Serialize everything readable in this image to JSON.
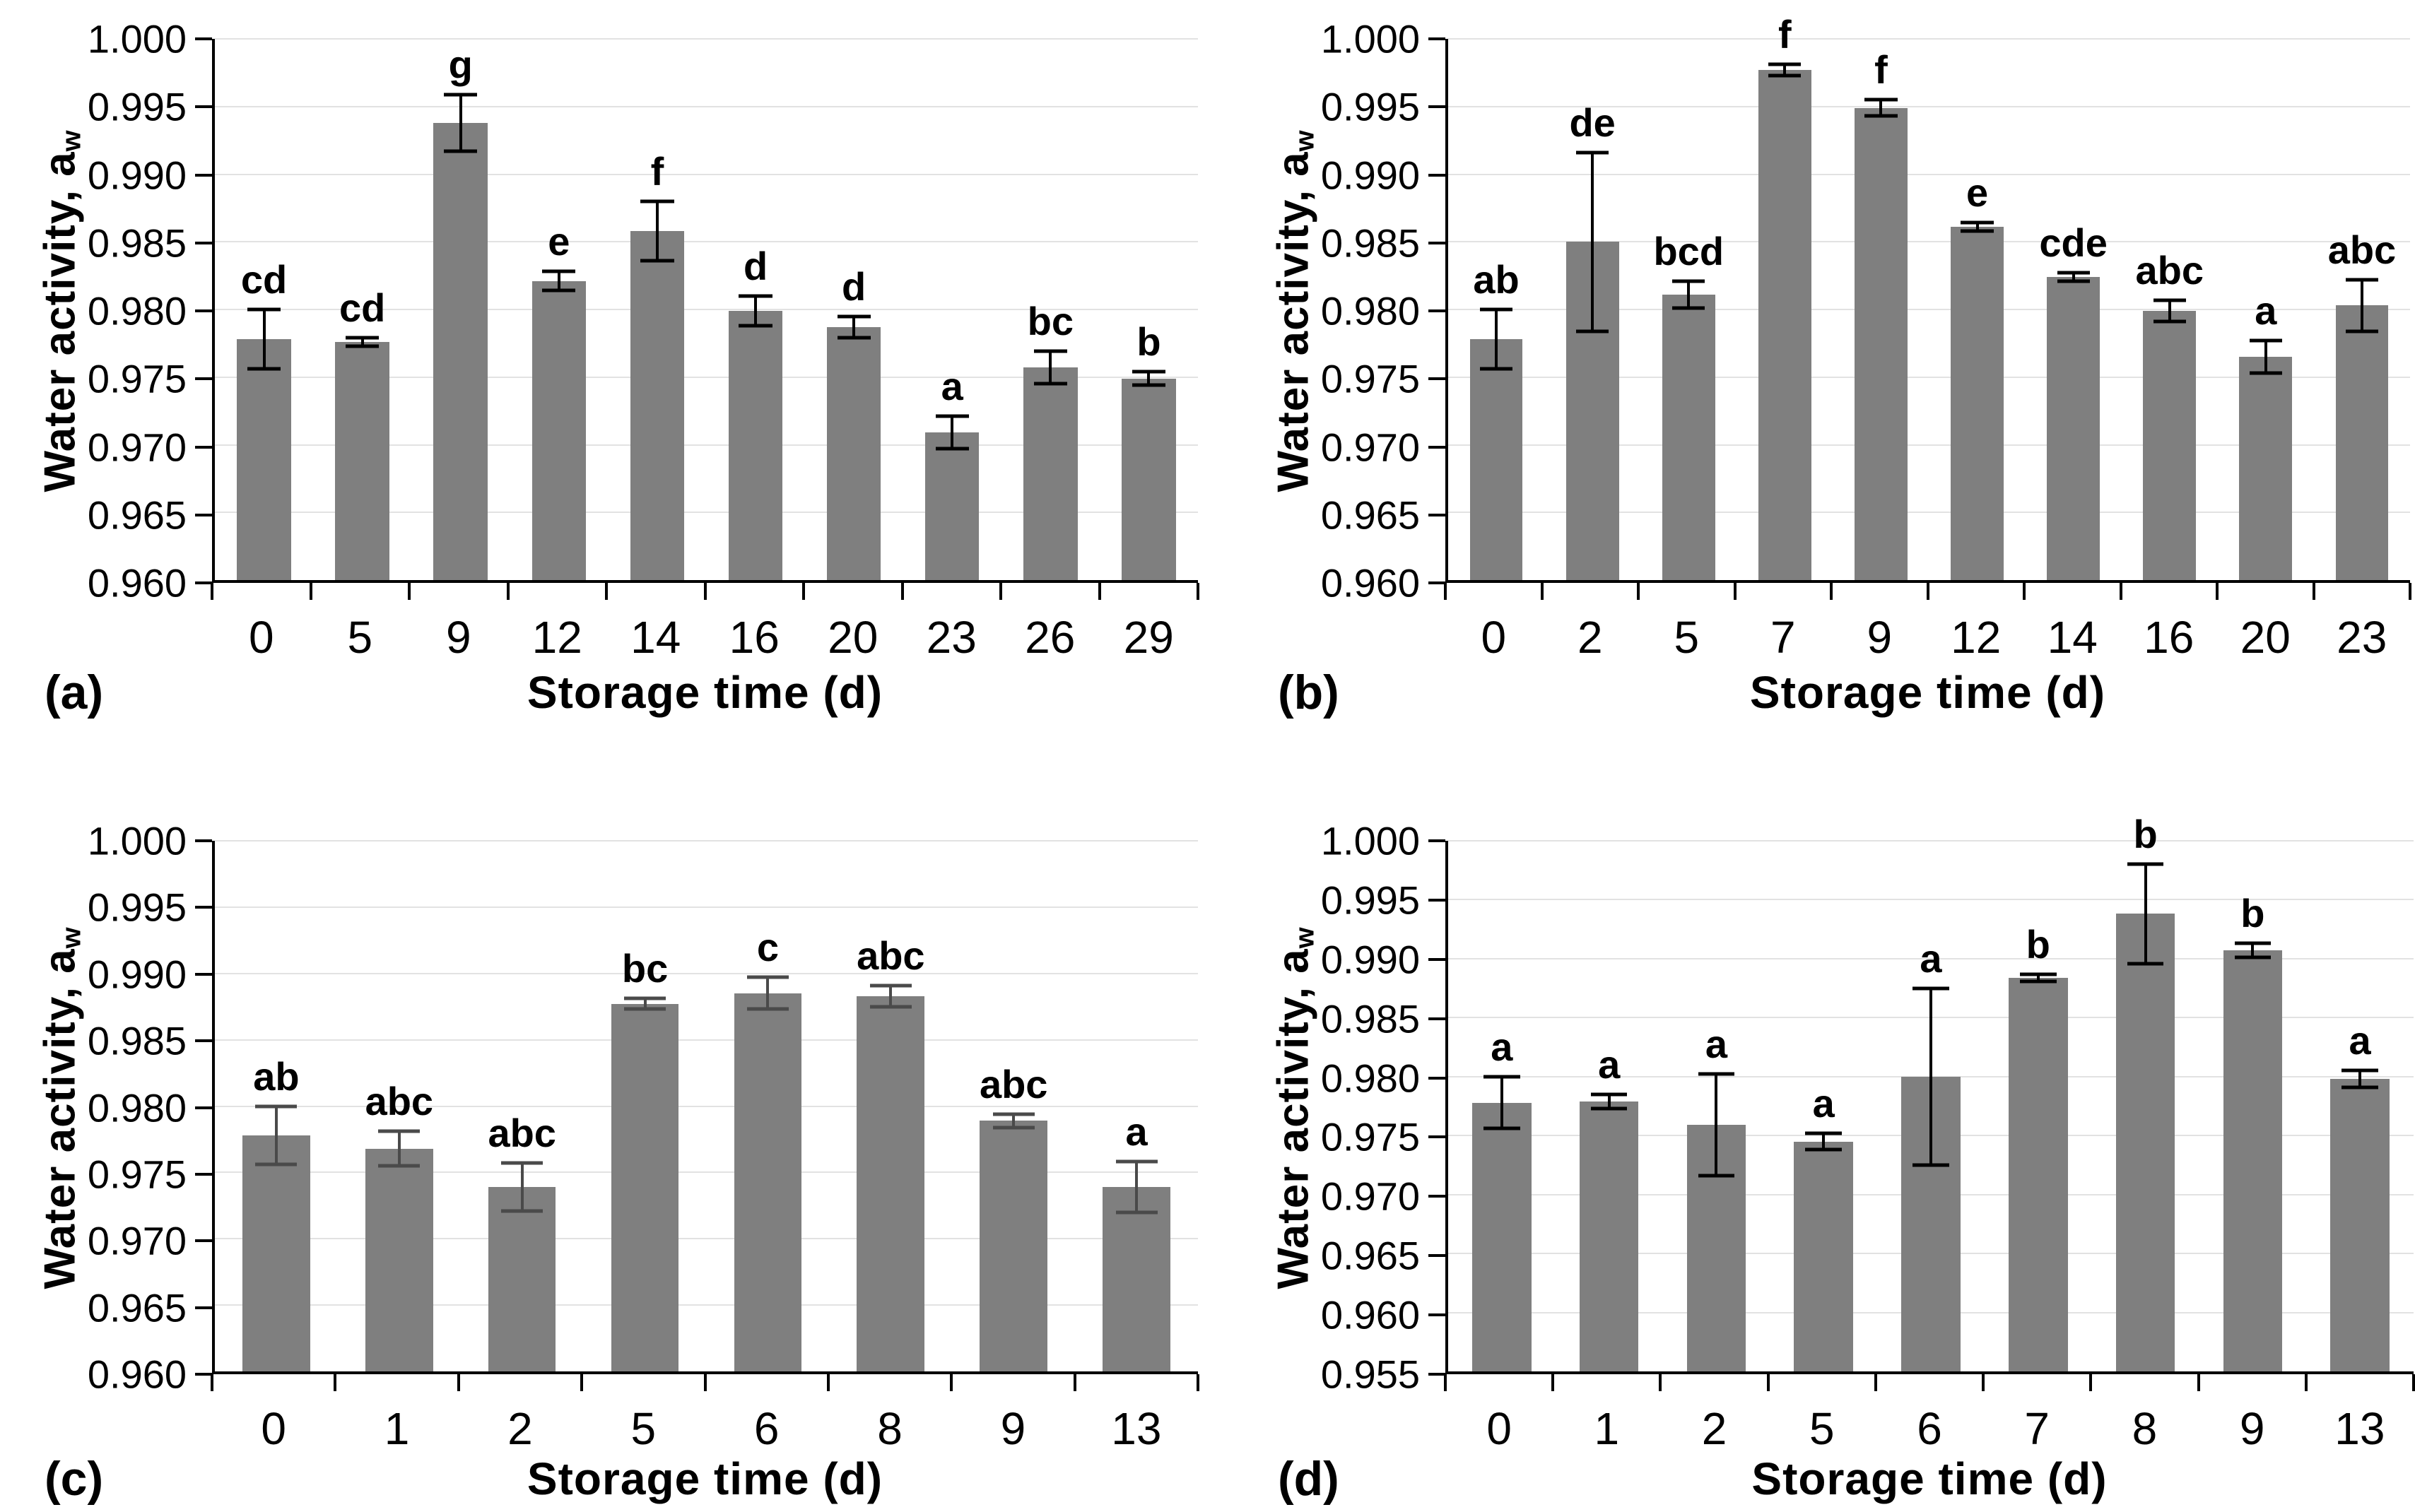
{
  "figure": {
    "background": "#ffffff",
    "bar_color": "#7f7f7f",
    "gridline_color": "#e2e2e2",
    "axis_color": "#000000",
    "text_color": "#000000",
    "yaxis_title_main": "Water activity, a",
    "yaxis_title_subscript": "w",
    "xaxis_title": "Storage time (d)"
  },
  "chart_data": [
    {
      "type": "bar",
      "panel": "(a)",
      "title": "",
      "xlabel": "Storage time (d)",
      "ylabel": "Water activity, aw",
      "categories": [
        "0",
        "5",
        "9",
        "12",
        "14",
        "16",
        "20",
        "23",
        "26",
        "29"
      ],
      "values": [
        0.9778,
        0.9776,
        0.9938,
        0.9821,
        0.9858,
        0.9799,
        0.9787,
        0.9709,
        0.9757,
        0.9749
      ],
      "errors": [
        0.0022,
        0.0003,
        0.0021,
        0.0007,
        0.0022,
        0.0011,
        0.0008,
        0.0012,
        0.0012,
        0.0005
      ],
      "sig_labels": [
        "cd",
        "cd",
        "g",
        "e",
        "f",
        "d",
        "d",
        "a",
        "bc",
        "b"
      ],
      "ylim": [
        0.96,
        1.0
      ],
      "ytick_step": 0.005,
      "yticks": [
        "1.000",
        "0.995",
        "0.990",
        "0.985",
        "0.980",
        "0.975",
        "0.970",
        "0.965",
        "0.960"
      ],
      "grid": true,
      "legend": "none",
      "error_color": "#000000"
    },
    {
      "type": "bar",
      "panel": "(b)",
      "title": "",
      "xlabel": "Storage time (d)",
      "ylabel": "Water activity, aw",
      "categories": [
        "0",
        "2",
        "5",
        "7",
        "9",
        "12",
        "14",
        "16",
        "20",
        "23"
      ],
      "values": [
        0.9778,
        0.985,
        0.9811,
        0.9977,
        0.9949,
        0.9861,
        0.9824,
        0.9799,
        0.9765,
        0.9803
      ],
      "errors": [
        0.0022,
        0.0066,
        0.001,
        0.0004,
        0.0006,
        0.0003,
        0.0003,
        0.0008,
        0.0012,
        0.0019
      ],
      "sig_labels": [
        "ab",
        "de",
        "bcd",
        "f",
        "f",
        "e",
        "cde",
        "abc",
        "a",
        "abc"
      ],
      "ylim": [
        0.96,
        1.0
      ],
      "ytick_step": 0.005,
      "yticks": [
        "1.000",
        "0.995",
        "0.990",
        "0.985",
        "0.980",
        "0.975",
        "0.970",
        "0.965",
        "0.960"
      ],
      "grid": true,
      "legend": "none",
      "error_color": "#000000"
    },
    {
      "type": "bar",
      "panel": "(c)",
      "title": "",
      "xlabel": "Storage time (d)",
      "ylabel": "Water activity, aw",
      "categories": [
        "0",
        "1",
        "2",
        "5",
        "6",
        "8",
        "9",
        "13"
      ],
      "values": [
        0.9778,
        0.9768,
        0.9739,
        0.9877,
        0.9885,
        0.9883,
        0.9789,
        0.9739
      ],
      "errors": [
        0.0022,
        0.0013,
        0.0018,
        0.0004,
        0.0012,
        0.0008,
        0.0005,
        0.0019
      ],
      "sig_labels": [
        "ab",
        "abc",
        "abc",
        "bc",
        "c",
        "abc",
        "abc",
        "a"
      ],
      "ylim": [
        0.96,
        1.0
      ],
      "ytick_step": 0.005,
      "yticks": [
        "1.000",
        "0.995",
        "0.990",
        "0.985",
        "0.980",
        "0.975",
        "0.970",
        "0.965",
        "0.960"
      ],
      "grid": true,
      "legend": "none",
      "error_color": "#4a4a4a"
    },
    {
      "type": "bar",
      "panel": "(d)",
      "title": "",
      "xlabel": "Storage time (d)",
      "ylabel": "Water activity, aw",
      "categories": [
        "0",
        "1",
        "2",
        "5",
        "6",
        "7",
        "8",
        "9",
        "13"
      ],
      "values": [
        0.9778,
        0.9779,
        0.9759,
        0.9745,
        0.98,
        0.9884,
        0.9938,
        0.9907,
        0.9798
      ],
      "errors": [
        0.0022,
        0.0006,
        0.0043,
        0.0007,
        0.0075,
        0.0003,
        0.0042,
        0.0006,
        0.0007
      ],
      "sig_labels": [
        "a",
        "a",
        "a",
        "a",
        "a",
        "b",
        "b",
        "b",
        "a"
      ],
      "ylim": [
        0.955,
        1.0
      ],
      "ytick_step": 0.005,
      "yticks": [
        "1.000",
        "0.995",
        "0.990",
        "0.985",
        "0.980",
        "0.975",
        "0.970",
        "0.965",
        "0.960",
        "0.955"
      ],
      "grid": true,
      "legend": "none",
      "error_color": "#000000"
    }
  ]
}
